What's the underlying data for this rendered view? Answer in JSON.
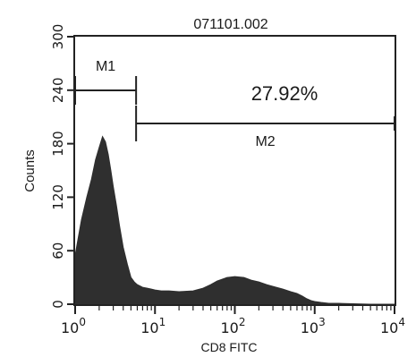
{
  "chart_data": {
    "type": "area",
    "title": "071101.002",
    "xlabel": "CD8 FITC",
    "ylabel": "Counts",
    "x_scale": "log",
    "xlim": [
      1,
      10000
    ],
    "ylim": [
      0,
      300
    ],
    "x_ticks": [
      {
        "value": 1,
        "base": "10",
        "exp": "0"
      },
      {
        "value": 10,
        "base": "10",
        "exp": "1"
      },
      {
        "value": 100,
        "base": "10",
        "exp": "2"
      },
      {
        "value": 1000,
        "base": "10",
        "exp": "3"
      },
      {
        "value": 10000,
        "base": "10",
        "exp": "4"
      }
    ],
    "y_ticks": [
      "0",
      "60",
      "120",
      "180",
      "240",
      "300"
    ],
    "series": [
      {
        "x": [
          1.0,
          1.2,
          1.4,
          1.6,
          1.8,
          2.0,
          2.2,
          2.4,
          2.6,
          2.8,
          3.0,
          3.3,
          3.6,
          4.0,
          4.5,
          5.0,
          5.5,
          6.0,
          7.0,
          8.0,
          9.0,
          10,
          12,
          15,
          20,
          30,
          40,
          50,
          60,
          80,
          100,
          130,
          160,
          200,
          250,
          300,
          400,
          500,
          600,
          700,
          800,
          900,
          1000,
          1200,
          1500,
          2000,
          5000,
          10000
        ],
        "y": [
          55,
          95,
          120,
          140,
          162,
          176,
          188,
          182,
          168,
          150,
          132,
          110,
          88,
          64,
          45,
          30,
          25,
          22,
          19,
          18,
          17,
          16,
          15,
          15,
          14,
          15,
          18,
          22,
          26,
          30,
          31,
          30,
          27,
          25,
          22,
          20,
          17,
          14,
          12,
          9,
          6,
          4,
          3,
          2,
          1,
          1,
          0,
          0
        ]
      }
    ],
    "markers": [
      {
        "label": "M1",
        "from": 1,
        "to": 5.8
      },
      {
        "label": "M2",
        "from": 5.8,
        "to": 10000
      }
    ],
    "annotation": "27.92%",
    "colors": {
      "fill": "#2f2f2f",
      "axis": "#222222",
      "background": "#ffffff"
    }
  }
}
